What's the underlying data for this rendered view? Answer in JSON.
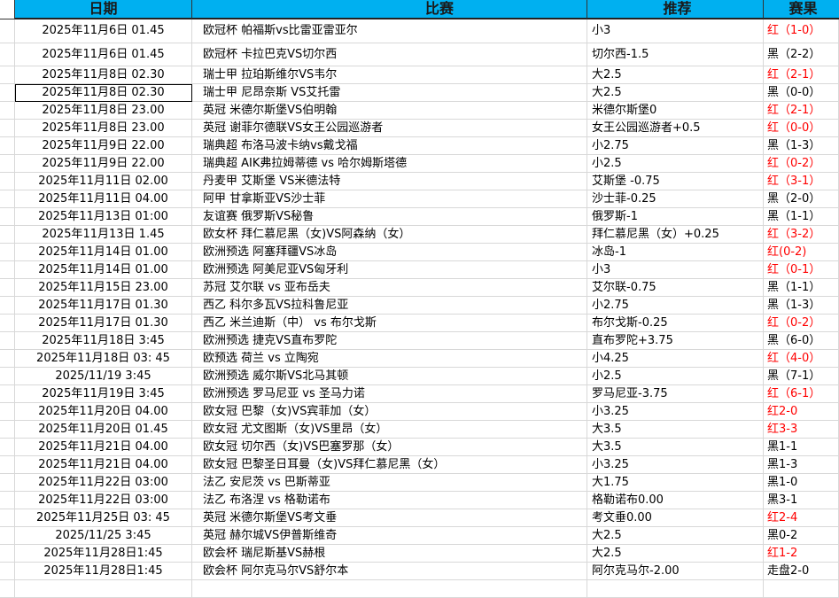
{
  "header": {
    "date": "日期",
    "match": "比赛",
    "tip": "推荐",
    "result": "赛果"
  },
  "colors": {
    "header_bg": "#00b0f0",
    "win": "#ff0000",
    "loss": "#000000"
  },
  "rows": [
    {
      "date": "2025年11月6日 01.45",
      "match": "欧冠杯 帕福斯vs比雷亚雷亚尔",
      "tip": "小3",
      "result": "红（1-0）",
      "red": true
    },
    {
      "date": "2025年11月6日 01.45",
      "match": "欧冠杯 卡拉巴克VS切尔西",
      "tip": "切尔西-1.5",
      "result": "黑（2-2）",
      "red": false
    },
    {
      "date": "2025年11月8日 02.30",
      "match": "瑞士甲 拉珀斯维尔VS韦尔",
      "tip": "大2.5",
      "result": "红（2-1）",
      "red": true
    },
    {
      "date": "2025年11月8日 02.30",
      "match": "瑞士甲 尼昂奈斯 VS艾托雷",
      "tip": "大2.5",
      "result": "黑（0-0）",
      "red": false
    },
    {
      "date": "2025年11月8日 23.00",
      "match": "英冠 米德尔斯堡VS伯明翰",
      "tip": "米德尔斯堡0",
      "result": "红（2-1）",
      "red": true
    },
    {
      "date": "2025年11月8日 23.00",
      "match": "英冠 谢菲尔德联VS女王公园巡游者",
      "tip": "女王公园巡游者+0.5",
      "result": "红（0-0）",
      "red": true
    },
    {
      "date": "2025年11月9日 22.00",
      "match": "瑞典超 布洛马波卡纳vs戴戈福",
      "tip": "小2.75",
      "result": "黑（1-3）",
      "red": false
    },
    {
      "date": "2025年11月9日 22.00",
      "match": "瑞典超 AIK弗拉姆蒂德 vs 哈尔姆斯塔德",
      "tip": "小2.5",
      "result": "红（0-2）",
      "red": true
    },
    {
      "date": "2025年11月11日 02.00",
      "match": "丹麦甲 艾斯堡 VS米德法特",
      "tip": "艾斯堡 -0.75",
      "result": "红（3-1）",
      "red": true
    },
    {
      "date": "2025年11月11日 04.00",
      "match": "阿甲 甘拿斯亚VS沙士菲",
      "tip": "沙士菲-0.25",
      "result": "黑（2-0）",
      "red": false
    },
    {
      "date": "2025年11月13日 01:00",
      "match": "友谊赛 俄罗斯VS秘鲁",
      "tip": "俄罗斯-1",
      "result": "黑（1-1）",
      "red": false
    },
    {
      "date": "2025年11月13日 1.45",
      "match": "欧女杯 拜仁慕尼黑（女)VS阿森纳（女）",
      "tip": "拜仁慕尼黑（女）+0.25",
      "result": "红（3-2）",
      "red": true
    },
    {
      "date": "2025年11月14日 01.00",
      "match": "欧洲预选 阿塞拜疆VS冰岛",
      "tip": "冰岛-1",
      "result": "红(0-2)",
      "red": true
    },
    {
      "date": "2025年11月14日 01.00",
      "match": "欧洲预选 阿美尼亚VS匈牙利",
      "tip": "小3",
      "result": "红（0-1）",
      "red": true
    },
    {
      "date": "2025年11月15日 23.00",
      "match": "苏冠 艾尔联 vs 亚布岳夫",
      "tip": "艾尔联-0.75",
      "result": "黑（1-1）",
      "red": false
    },
    {
      "date": "2025年11月17日 01.30",
      "match": "西乙 科尔多瓦VS拉科鲁尼亚",
      "tip": "小2.75",
      "result": "黑（1-3）",
      "red": false
    },
    {
      "date": "2025年11月17日 01.30",
      "match": "西乙 米兰迪斯（中） vs 布尔戈斯",
      "tip": "布尔戈斯-0.25",
      "result": "红（0-2）",
      "red": true
    },
    {
      "date": "2025年11月18日 3:45",
      "match": "欧洲预选 捷克VS直布罗陀",
      "tip": "直布罗陀+3.75",
      "result": "黑（6-0）",
      "red": false
    },
    {
      "date": "2025年11月18日 03: 45",
      "match": "欧预选 荷兰 vs 立陶宛",
      "tip": "小4.25",
      "result": "红（4-0）",
      "red": true
    },
    {
      "date": "2025/11/19 3:45",
      "match": "欧洲预选 威尔斯VS北马其顿",
      "tip": "小2.5",
      "result": "黑（7-1）",
      "red": false
    },
    {
      "date": "2025年11月19日 3:45",
      "match": "欧洲预选 罗马尼亚 vs 圣马力诺",
      "tip": "罗马尼亚-3.75",
      "result": "红（6-1）",
      "red": true
    },
    {
      "date": "2025年11月20日 04.00",
      "match": "欧女冠 巴黎（女)VS宾菲加（女）",
      "tip": "小3.25",
      "result": "红2-0",
      "red": true
    },
    {
      "date": "2025年11月20日 01.45",
      "match": "欧女冠 尤文图斯（女)VS里昂（女）",
      "tip": "大3.5",
      "result": "红3-3",
      "red": true
    },
    {
      "date": "2025年11月21日 04.00",
      "match": "欧女冠 切尔西（女)VS巴塞罗那（女）",
      "tip": "大3.5",
      "result": "黑1-1",
      "red": false
    },
    {
      "date": "2025年11月21日 04.00",
      "match": "欧女冠 巴黎圣日耳曼（女)VS拜仁慕尼黑（女）",
      "tip": "小3.25",
      "result": "黑1-3",
      "red": false
    },
    {
      "date": "2025年11月22日 03:00",
      "match": "法乙 安尼茨 vs 巴斯蒂亚",
      "tip": "大1.75",
      "result": "黑1-0",
      "red": false
    },
    {
      "date": "2025年11月22日 03:00",
      "match": "法乙 布洛涅 vs 格勒诺布",
      "tip": "格勒诺布0.00",
      "result": "黑3-1",
      "red": false
    },
    {
      "date": "2025年11月25日 03: 45",
      "match": "英冠 米德尔斯堡VS考文垂",
      "tip": "考文垂0.00",
      "result": "红2-4",
      "red": true
    },
    {
      "date": "2025/11/25 3:45",
      "match": "英冠 赫尔城VS伊普斯维奇",
      "tip": "大2.5",
      "result": "黑0-2",
      "red": false
    },
    {
      "date": "2025年11月28日1:45",
      "match": "欧会杯 瑞尼斯基VS赫根",
      "tip": "大2.5",
      "result": "红1-2",
      "red": true
    },
    {
      "date": "2025年11月28日1:45",
      "match": "欧会杯 阿尔克马尔VS舒尔本",
      "tip": "阿尔克马尔-2.00",
      "result": "走盘2-0",
      "red": false
    }
  ]
}
